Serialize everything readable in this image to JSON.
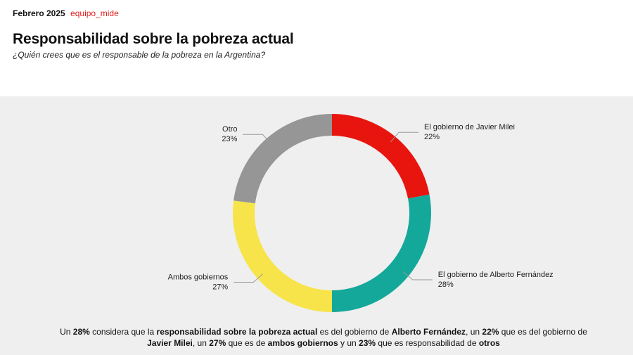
{
  "header": {
    "date": "Febrero 2025",
    "brand": "equipo_mide"
  },
  "title": "Responsabilidad sobre la pobreza actual",
  "subtitle": "¿Quién crees que es el responsable de la pobreza en la Argentina?",
  "chart_data": {
    "type": "pie",
    "donut": true,
    "unit": "%",
    "slices": [
      {
        "label": "El gobierno de Javier Milei",
        "value": 22,
        "color": "#e8150f"
      },
      {
        "label": "El gobierno de Alberto Fernández",
        "value": 28,
        "color": "#14a89b"
      },
      {
        "label": "Ambos gobiernos",
        "value": 27,
        "color": "#f7e44a"
      },
      {
        "label": "Otro",
        "value": 23,
        "color": "#969696"
      }
    ]
  },
  "footer": {
    "t1": "Un ",
    "b1": "28%",
    "t2": " considera que la ",
    "b2": "responsabilidad sobre la pobreza actual",
    "t3": " es del gobierno de ",
    "b3": "Alberto Fernández",
    "t4": ", un ",
    "b4": "22%",
    "t5": " que es del gobierno de ",
    "b5": "Javier Milei",
    "t6": ", un ",
    "b6": "27%",
    "t7": " que es de ",
    "b7": "ambos gobiernos",
    "t8": " y un ",
    "b8": "23%",
    "t9": " que es responsabilidad de ",
    "b9": "otros"
  }
}
